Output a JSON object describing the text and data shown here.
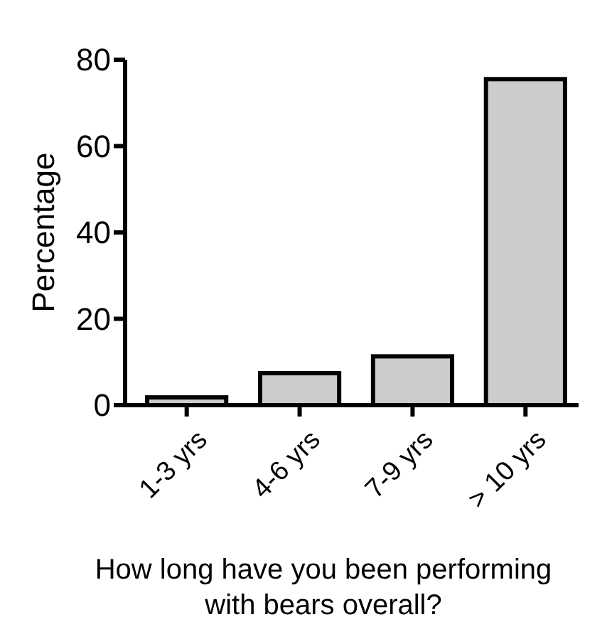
{
  "chart_data": {
    "type": "bar",
    "categories": [
      "1-3 yrs",
      "4-6 yrs",
      "7-9 yrs",
      "> 10 yrs"
    ],
    "values": [
      1.8,
      7.4,
      11.3,
      75.5
    ],
    "color": "#cccccc",
    "ylim": [
      0,
      80
    ],
    "yticks": [
      0,
      20,
      40,
      60,
      80
    ],
    "ylabel": "Percentage",
    "xlabel": "How long have you been performing with bears overall?",
    "grid": false
  }
}
